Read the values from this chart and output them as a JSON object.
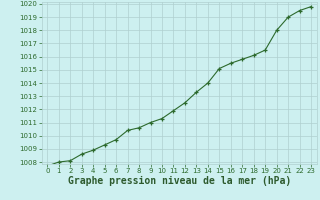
{
  "x": [
    0,
    1,
    2,
    3,
    4,
    5,
    6,
    7,
    8,
    9,
    10,
    11,
    12,
    13,
    14,
    15,
    16,
    17,
    18,
    19,
    20,
    21,
    22,
    23
  ],
  "y": [
    1007.7,
    1008.0,
    1008.1,
    1008.6,
    1008.9,
    1009.3,
    1009.7,
    1010.4,
    1010.6,
    1011.0,
    1011.3,
    1011.9,
    1012.5,
    1013.3,
    1014.0,
    1015.1,
    1015.5,
    1015.8,
    1016.1,
    1016.5,
    1018.0,
    1019.0,
    1019.5,
    1019.8
  ],
  "ylim": [
    1008,
    1020
  ],
  "xlim": [
    -0.5,
    23.5
  ],
  "yticks": [
    1008,
    1009,
    1010,
    1011,
    1012,
    1013,
    1014,
    1015,
    1016,
    1017,
    1018,
    1019,
    1020
  ],
  "xticks": [
    0,
    1,
    2,
    3,
    4,
    5,
    6,
    7,
    8,
    9,
    10,
    11,
    12,
    13,
    14,
    15,
    16,
    17,
    18,
    19,
    20,
    21,
    22,
    23
  ],
  "line_color": "#2d6a2d",
  "marker_color": "#2d6a2d",
  "bg_color": "#cdf0f0",
  "grid_color": "#b0d0d0",
  "xlabel": "Graphe pression niveau de la mer (hPa)",
  "xlabel_color": "#2d5a2d",
  "tick_color": "#2d6a2d",
  "tick_fontsize": 5.0,
  "xlabel_fontsize": 7.0
}
